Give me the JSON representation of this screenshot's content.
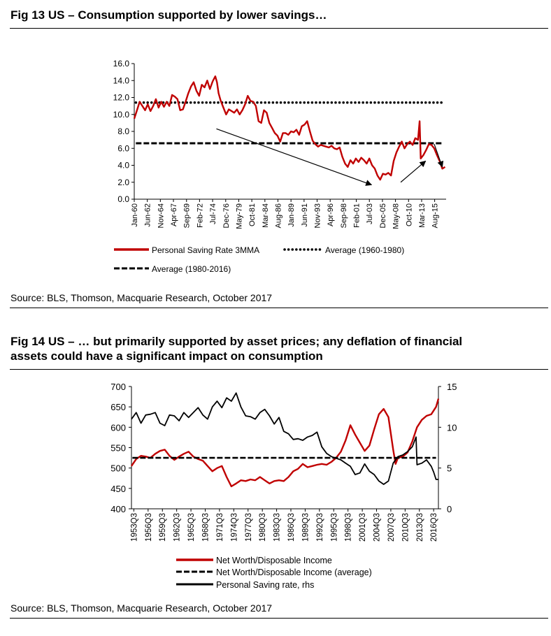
{
  "fig13": {
    "title": "Fig 13    US – Consumption supported by lower savings…",
    "source": "Source: BLS, Thomson, Macquarie Research, October 2017",
    "chart_data": {
      "type": "line",
      "yticks": [
        "0.0",
        "2.0",
        "4.0",
        "6.0",
        "8.0",
        "10.0",
        "12.0",
        "14.0",
        "16.0"
      ],
      "ylim": [
        0,
        16
      ],
      "xlim": [
        1960.0,
        2017.7
      ],
      "xticks": [
        {
          "label": "Jan-60",
          "t": 1960.0
        },
        {
          "label": "Jun-62",
          "t": 1962.42
        },
        {
          "label": "Nov-64",
          "t": 1964.83
        },
        {
          "label": "Apr-67",
          "t": 1967.25
        },
        {
          "label": "Sep-69",
          "t": 1969.67
        },
        {
          "label": "Feb-72",
          "t": 1972.08
        },
        {
          "label": "Jul-74",
          "t": 1974.5
        },
        {
          "label": "Dec-76",
          "t": 1976.92
        },
        {
          "label": "May-79",
          "t": 1979.33
        },
        {
          "label": "Oct-81",
          "t": 1981.75
        },
        {
          "label": "Mar-84",
          "t": 1984.17
        },
        {
          "label": "Aug-86",
          "t": 1986.58
        },
        {
          "label": "Jan-89",
          "t": 1989.0
        },
        {
          "label": "Jun-91",
          "t": 1991.42
        },
        {
          "label": "Nov-93",
          "t": 1993.83
        },
        {
          "label": "Apr-96",
          "t": 1996.25
        },
        {
          "label": "Sep-98",
          "t": 1998.67
        },
        {
          "label": "Feb-01",
          "t": 2001.08
        },
        {
          "label": "Jul-03",
          "t": 2003.5
        },
        {
          "label": "Dec-05",
          "t": 2005.92
        },
        {
          "label": "May-08",
          "t": 2008.33
        },
        {
          "label": "Oct-10",
          "t": 2010.75
        },
        {
          "label": "Mar-13",
          "t": 2013.17
        },
        {
          "label": "Aug-15",
          "t": 2015.58
        }
      ],
      "series": [
        {
          "name": "Personal Saving Rate 3MMA",
          "color": "#c00000",
          "x": [
            1960,
            1960.5,
            1961,
            1961.5,
            1962,
            1962.5,
            1963,
            1963.5,
            1964,
            1964.5,
            1965,
            1965.5,
            1966,
            1966.5,
            1967,
            1967.5,
            1968,
            1968.5,
            1969,
            1969.5,
            1970,
            1970.5,
            1971,
            1971.5,
            1972,
            1972.5,
            1973,
            1973.5,
            1974,
            1974.5,
            1975,
            1975.3,
            1975.6,
            1976,
            1976.5,
            1977,
            1977.5,
            1978,
            1978.5,
            1979,
            1979.5,
            1980,
            1980.5,
            1981,
            1981.5,
            1982,
            1982.5,
            1983,
            1983.5,
            1984,
            1984.5,
            1985,
            1985.5,
            1986,
            1986.5,
            1987,
            1987.5,
            1988,
            1988.5,
            1989,
            1989.5,
            1990,
            1990.5,
            1991,
            1991.5,
            1992,
            1992.5,
            1993,
            1993.5,
            1994,
            1994.5,
            1995,
            1995.5,
            1996,
            1996.5,
            1997,
            1997.5,
            1998,
            1998.5,
            1999,
            1999.5,
            2000,
            2000.5,
            2001,
            2001.5,
            2002,
            2002.5,
            2003,
            2003.5,
            2004,
            2004.5,
            2005,
            2005.5,
            2006,
            2006.5,
            2007,
            2007.5,
            2008,
            2008.5,
            2009,
            2009.5,
            2010,
            2010.5,
            2011,
            2011.5,
            2012,
            2012.5,
            2012.8,
            2013,
            2013.5,
            2014,
            2014.5,
            2015,
            2015.5,
            2016,
            2016.5,
            2017,
            2017.5
          ],
          "y": [
            9.5,
            10.5,
            11.5,
            11.0,
            10.5,
            11.2,
            10.4,
            11.0,
            11.8,
            10.8,
            11.5,
            10.9,
            11.5,
            11.0,
            12.3,
            12.1,
            11.8,
            10.5,
            10.6,
            11.5,
            12.5,
            13.3,
            13.8,
            12.8,
            12.2,
            13.5,
            13.2,
            14.0,
            13.0,
            13.9,
            14.5,
            13.8,
            12.5,
            11.6,
            10.8,
            10.0,
            10.6,
            10.4,
            10.2,
            10.6,
            10.0,
            10.5,
            11.2,
            12.2,
            11.6,
            11.5,
            11.0,
            9.2,
            9.0,
            10.5,
            10.2,
            9.0,
            8.4,
            7.8,
            7.5,
            6.8,
            7.8,
            7.8,
            7.6,
            8.0,
            7.9,
            8.2,
            7.6,
            8.6,
            8.8,
            9.2,
            8.0,
            6.9,
            6.5,
            6.2,
            6.4,
            6.3,
            6.2,
            6.1,
            6.3,
            6.0,
            5.9,
            6.1,
            5.0,
            4.2,
            3.8,
            4.6,
            4.2,
            4.8,
            4.4,
            4.9,
            4.6,
            4.2,
            4.8,
            4.0,
            3.6,
            2.8,
            2.3,
            3.0,
            2.9,
            3.1,
            2.8,
            4.5,
            5.5,
            6.2,
            6.8,
            6.0,
            6.5,
            6.8,
            6.4,
            7.2,
            7.0,
            9.2,
            4.8,
            5.2,
            5.8,
            6.5,
            6.4,
            6.0,
            5.2,
            4.5,
            3.6,
            3.8
          ]
        },
        {
          "name": "Average (1960-1980)",
          "style": "dotted",
          "value": 11.4
        },
        {
          "name": "Average (1980-2016)",
          "style": "dashed",
          "value": 6.6
        }
      ],
      "arrows": [
        {
          "from": [
            1975.2,
            8.3
          ],
          "to": [
            2003.9,
            1.7
          ]
        },
        {
          "from": [
            2009.3,
            2.0
          ],
          "to": [
            2013.9,
            4.5
          ]
        },
        {
          "from": [
            2015.5,
            6.5
          ],
          "to": [
            2017.0,
            3.8
          ]
        }
      ],
      "legend": [
        "Personal Saving Rate 3MMA",
        "Average (1960-1980)",
        "Average (1980-2016)"
      ]
    }
  },
  "fig14": {
    "title_line1": "Fig 14    US – … but primarily supported by asset prices; any deflation of financial",
    "title_line2": "assets could have a significant impact on consumption",
    "source": "Source: BLS, Thomson, Macquarie Research, October 2017",
    "chart_data": {
      "type": "line",
      "yticks_left": [
        "400",
        "450",
        "500",
        "550",
        "600",
        "650",
        "700"
      ],
      "ylim_left": [
        400,
        700
      ],
      "yticks_right": [
        "0",
        "5",
        "10",
        "15"
      ],
      "ylim_right": [
        0,
        15
      ],
      "xlim": [
        1953.0,
        2017.5
      ],
      "xticks": [
        {
          "label": "1953Q3",
          "t": 1953.5
        },
        {
          "label": "1956Q3",
          "t": 1956.5
        },
        {
          "label": "1959Q3",
          "t": 1959.5
        },
        {
          "label": "1962Q3",
          "t": 1962.5
        },
        {
          "label": "1965Q3",
          "t": 1965.5
        },
        {
          "label": "1968Q3",
          "t": 1968.5
        },
        {
          "label": "1971Q3",
          "t": 1971.5
        },
        {
          "label": "1974Q3",
          "t": 1974.5
        },
        {
          "label": "1977Q3",
          "t": 1977.5
        },
        {
          "label": "1980Q3",
          "t": 1980.5
        },
        {
          "label": "1983Q3",
          "t": 1983.5
        },
        {
          "label": "1986Q3",
          "t": 1986.5
        },
        {
          "label": "1989Q3",
          "t": 1989.5
        },
        {
          "label": "1992Q3",
          "t": 1992.5
        },
        {
          "label": "1995Q3",
          "t": 1995.5
        },
        {
          "label": "1998Q3",
          "t": 1998.5
        },
        {
          "label": "2001Q3",
          "t": 2001.5
        },
        {
          "label": "2004Q3",
          "t": 2004.5
        },
        {
          "label": "2007Q3",
          "t": 2007.5
        },
        {
          "label": "2010Q3",
          "t": 2010.5
        },
        {
          "label": "2013Q3",
          "t": 2013.5
        },
        {
          "label": "2016Q3",
          "t": 2016.5
        }
      ],
      "series": [
        {
          "name": "Net Worth/Disposable Income",
          "color": "#c00000",
          "axis": "left",
          "x": [
            1953,
            1954,
            1955,
            1956,
            1957,
            1958,
            1959,
            1960,
            1961,
            1962,
            1963,
            1964,
            1965,
            1966,
            1967,
            1968,
            1969,
            1970,
            1971,
            1972,
            1973,
            1974,
            1975,
            1976,
            1977,
            1978,
            1979,
            1980,
            1981,
            1982,
            1983,
            1984,
            1985,
            1986,
            1987,
            1988,
            1989,
            1990,
            1991,
            1992,
            1993,
            1994,
            1995,
            1996,
            1997,
            1998,
            1999,
            2000,
            2001,
            2002,
            2003,
            2004,
            2005,
            2006,
            2007,
            2008,
            2008.5,
            2009,
            2010,
            2011,
            2012,
            2013,
            2014,
            2015,
            2016,
            2017,
            2017.5
          ],
          "y": [
            505,
            522,
            530,
            528,
            525,
            535,
            542,
            545,
            530,
            520,
            528,
            535,
            540,
            528,
            522,
            518,
            505,
            492,
            500,
            505,
            478,
            455,
            462,
            470,
            468,
            472,
            470,
            478,
            470,
            462,
            468,
            470,
            468,
            478,
            492,
            498,
            510,
            502,
            505,
            508,
            510,
            508,
            515,
            525,
            540,
            568,
            605,
            582,
            562,
            542,
            555,
            595,
            632,
            645,
            625,
            545,
            510,
            525,
            528,
            538,
            565,
            600,
            618,
            628,
            632,
            650,
            670
          ]
        },
        {
          "name": "Net Worth/Disposable Income (average)",
          "style": "dashed",
          "axis": "left",
          "value": 525
        },
        {
          "name": "Personal Saving rate, rhs",
          "color": "#000000",
          "axis": "right",
          "x": [
            1953,
            1954,
            1955,
            1956,
            1957,
            1958,
            1959,
            1960,
            1961,
            1962,
            1963,
            1964,
            1965,
            1966,
            1967,
            1968,
            1969,
            1970,
            1971,
            1972,
            1973,
            1974,
            1975,
            1976,
            1977,
            1978,
            1979,
            1980,
            1981,
            1982,
            1983,
            1984,
            1985,
            1986,
            1987,
            1988,
            1989,
            1990,
            1991,
            1992,
            1993,
            1994,
            1995,
            1996,
            1997,
            1998,
            1999,
            2000,
            2001,
            2002,
            2003,
            2004,
            2005,
            2006,
            2007,
            2008,
            2009,
            2010,
            2011,
            2012,
            2012.8,
            2013,
            2014,
            2015,
            2016,
            2016.5,
            2017,
            2017.5
          ],
          "y": [
            11.0,
            11.8,
            10.5,
            11.5,
            11.6,
            11.8,
            10.5,
            10.2,
            11.5,
            11.4,
            10.8,
            11.8,
            11.2,
            11.8,
            12.4,
            11.5,
            11.0,
            12.5,
            13.2,
            12.4,
            13.6,
            13.2,
            14.2,
            12.5,
            11.4,
            11.3,
            11.0,
            11.8,
            12.2,
            11.4,
            10.4,
            11.2,
            9.5,
            9.2,
            8.5,
            8.6,
            8.4,
            8.8,
            9.0,
            9.4,
            7.6,
            6.8,
            6.4,
            6.2,
            6.0,
            5.6,
            5.2,
            4.2,
            4.4,
            5.5,
            4.6,
            4.2,
            3.4,
            3.0,
            3.4,
            5.6,
            6.4,
            6.6,
            7.0,
            7.6,
            8.8,
            5.4,
            5.6,
            6.0,
            5.2,
            4.5,
            3.6,
            3.6
          ]
        }
      ],
      "legend": [
        "Net Worth/Disposable Income",
        "Net Worth/Disposable Income (average)",
        "Personal Saving rate, rhs"
      ]
    }
  }
}
